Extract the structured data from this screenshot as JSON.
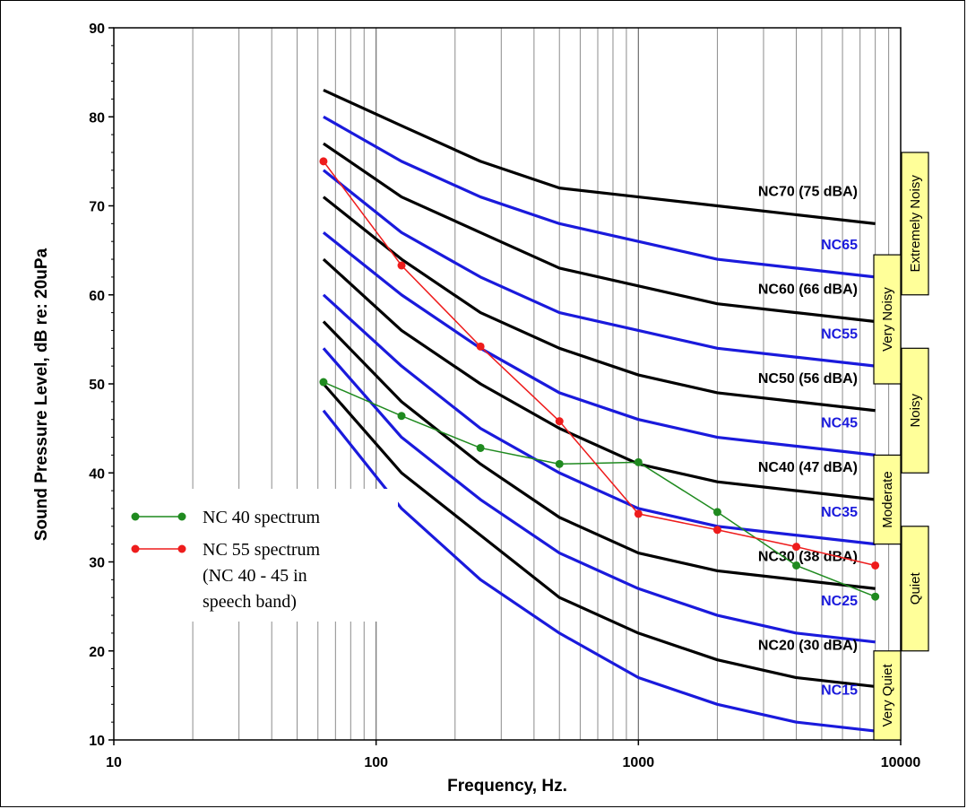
{
  "chart_data": {
    "type": "line",
    "xlabel": "Frequency, Hz.",
    "ylabel": "Sound Pressure Level, dB re: 20uPa",
    "x_scale": "log",
    "xlim": [
      10,
      10000
    ],
    "ylim": [
      10,
      90
    ],
    "x_ticks": [
      "10",
      "100",
      "1000",
      "10000"
    ],
    "y_ticks": [
      "10",
      "20",
      "30",
      "40",
      "50",
      "60",
      "70",
      "80",
      "90"
    ],
    "grid": "vertical log minor grid",
    "x": [
      63,
      125,
      250,
      500,
      1000,
      2000,
      4000,
      8000
    ],
    "nc_curves": [
      {
        "name": "NC70 (75 dBA)",
        "color": "#000000",
        "values": [
          83,
          79,
          75,
          72,
          71,
          70,
          69,
          68
        ]
      },
      {
        "name": "NC65",
        "color": "#1a1adc",
        "values": [
          80,
          75,
          71,
          68,
          66,
          64,
          63,
          62
        ]
      },
      {
        "name": "NC60 (66 dBA)",
        "color": "#000000",
        "values": [
          77,
          71,
          67,
          63,
          61,
          59,
          58,
          57
        ]
      },
      {
        "name": "NC55",
        "color": "#1a1adc",
        "values": [
          74,
          67,
          62,
          58,
          56,
          54,
          53,
          52
        ]
      },
      {
        "name": "NC50 (56 dBA)",
        "color": "#000000",
        "values": [
          71,
          64,
          58,
          54,
          51,
          49,
          48,
          47
        ]
      },
      {
        "name": "NC45",
        "color": "#1a1adc",
        "values": [
          67,
          60,
          54,
          49,
          46,
          44,
          43,
          42
        ]
      },
      {
        "name": "NC40 (47 dBA)",
        "color": "#000000",
        "values": [
          64,
          56,
          50,
          45,
          41,
          39,
          38,
          37
        ]
      },
      {
        "name": "NC35",
        "color": "#1a1adc",
        "values": [
          60,
          52,
          45,
          40,
          36,
          34,
          33,
          32
        ]
      },
      {
        "name": "NC30 (38 dBA)",
        "color": "#000000",
        "values": [
          57,
          48,
          41,
          35,
          31,
          29,
          28,
          27
        ]
      },
      {
        "name": "NC25",
        "color": "#1a1adc",
        "values": [
          54,
          44,
          37,
          31,
          27,
          24,
          22,
          21
        ]
      },
      {
        "name": "NC20 (30 dBA)",
        "color": "#000000",
        "values": [
          50,
          40,
          33,
          26,
          22,
          19,
          17,
          16
        ]
      },
      {
        "name": "NC15",
        "color": "#1a1adc",
        "values": [
          47,
          36,
          28,
          22,
          17,
          14,
          12,
          11
        ]
      }
    ],
    "spectra": [
      {
        "name": "NC 40 spectrum",
        "color": "#1f8a1f",
        "x": [
          63,
          125,
          250,
          500,
          1000,
          2000,
          4000,
          8000
        ],
        "values": [
          50.2,
          46.4,
          42.8,
          41.0,
          41.2,
          35.6,
          29.6,
          26.1
        ]
      },
      {
        "name": "NC 55 spectrum",
        "color": "#ee1c1c",
        "x": [
          63,
          125,
          250,
          500,
          1000,
          2000,
          4000,
          8000
        ],
        "values": [
          75.0,
          63.3,
          54.2,
          45.8,
          35.4,
          33.6,
          31.7,
          29.6
        ]
      }
    ],
    "legend": {
      "entries": [
        "NC 40 spectrum",
        "NC 55 spectrum",
        "(NC 40 - 45 in",
        "speech band)"
      ],
      "placement": "lower-left"
    },
    "category_boxes": [
      {
        "label": "Extremely Noisy",
        "ymin": 60,
        "ymax": 76
      },
      {
        "label": "Very Noisy",
        "ymin": 50,
        "ymax": 64.5
      },
      {
        "label": "Noisy",
        "ymin": 40,
        "ymax": 54
      },
      {
        "label": "Moderate",
        "ymin": 32,
        "ymax": 42
      },
      {
        "label": "Quiet",
        "ymin": 20,
        "ymax": 34
      },
      {
        "label": "Very Quiet",
        "ymin": 10,
        "ymax": 20
      }
    ]
  }
}
